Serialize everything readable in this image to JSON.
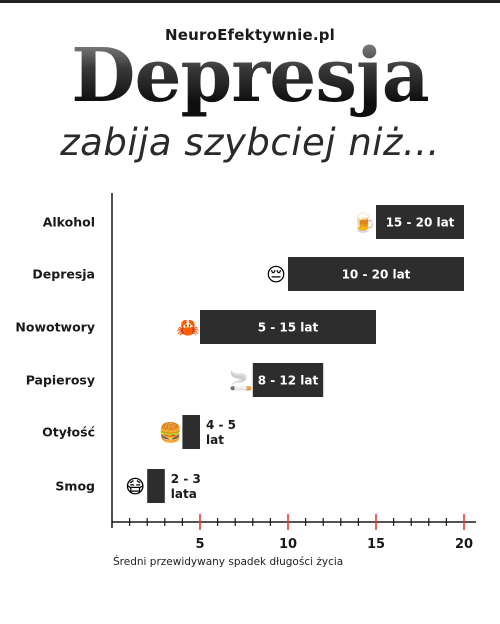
{
  "header": {
    "site": "NeuroEfektywnie.pl",
    "title": "Depresja",
    "subtitle": "zabija szybciej niż..."
  },
  "chart_data": {
    "type": "bar",
    "orientation": "horizontal",
    "range_bars": true,
    "categories": [
      "Alkohol",
      "Depresja",
      "Nowotwory",
      "Papierosy",
      "Otyłość",
      "Smog"
    ],
    "ranges": [
      [
        15,
        20
      ],
      [
        10,
        20
      ],
      [
        5,
        15
      ],
      [
        8,
        12
      ],
      [
        4,
        5
      ],
      [
        2,
        3
      ]
    ],
    "range_labels": [
      "15 - 20 lat",
      "10 - 20 lat",
      "5 - 15 lat",
      "8 - 12 lat",
      "4 - 5 lat",
      "2 - 3 lata"
    ],
    "icons": [
      "beer-mug-icon",
      "pensive-face-icon",
      "crab-icon",
      "cigarette-icon",
      "hamburger-icon",
      "face-with-mask-icon"
    ],
    "xlabel": "Średni przewidywany spadek długości życia",
    "xticks": [
      5,
      10,
      15,
      20
    ],
    "xlim": [
      0,
      20
    ],
    "bar_color": "#2d2d2d",
    "accent_color": "#e53935"
  }
}
